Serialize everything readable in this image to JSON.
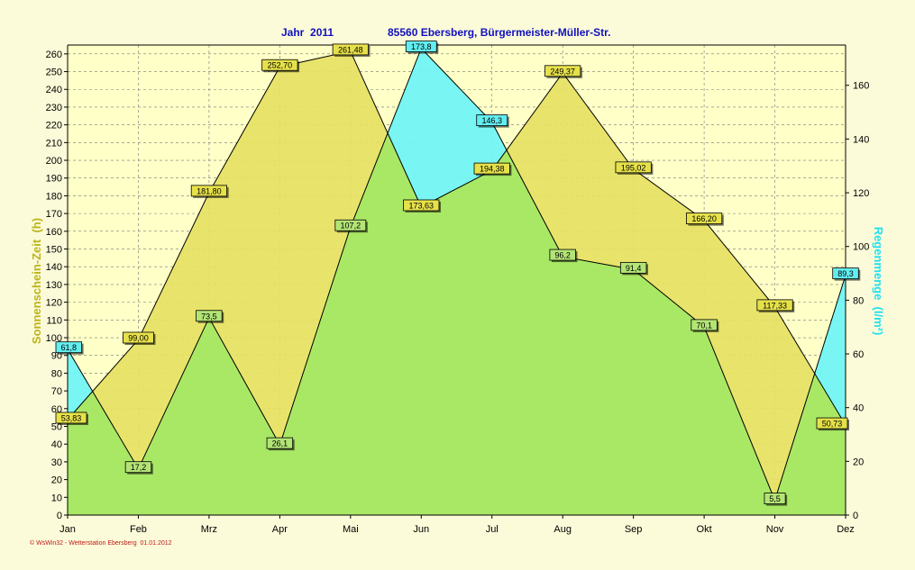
{
  "header": {
    "year_label": "Jahr  2011",
    "station_label": "85560 Ebersberg, Bürgermeister-Müller-Str."
  },
  "footer": {
    "credit": "© WsWin32 - Wetterstation Ebersberg  01.01.2012"
  },
  "colors": {
    "background": "#fcfbd9",
    "plot_background": "#ffffc8",
    "sunshine_fill": "#e6e163",
    "rain_fill": "#72f5f5",
    "overlap_fill": "#a9e865",
    "title_color": "#1010c0",
    "left_axis_color": "#bcb41a",
    "right_axis_color": "#20e0f0",
    "sunshine_label_bg": "#e6e14a",
    "rain_label_bg": "#62eef0",
    "hidden_label_bg": "#b3e476"
  },
  "chart_data": {
    "type": "area",
    "title": "Jahr  2011          85560 Ebersberg, Bürgermeister-Müller-Str.",
    "categories": [
      "Jan",
      "Feb",
      "Mrz",
      "Apr",
      "Mai",
      "Jun",
      "Jul",
      "Aug",
      "Sep",
      "Okt",
      "Nov",
      "Dez"
    ],
    "ylabel": "Sonnenschein-Zeit  (h)",
    "y2label": "Regenmenge  (l/m²)",
    "ylim": [
      0,
      265
    ],
    "y_ticks": [
      0,
      10,
      20,
      30,
      40,
      50,
      60,
      70,
      80,
      90,
      100,
      110,
      120,
      130,
      140,
      150,
      160,
      170,
      180,
      190,
      200,
      210,
      220,
      230,
      240,
      250,
      260
    ],
    "y2lim": [
      0,
      175
    ],
    "y2_ticks": [
      0,
      20,
      40,
      60,
      80,
      100,
      120,
      140,
      160
    ],
    "grid": true,
    "series": [
      {
        "name": "Sonnenschein-Zeit  (h)",
        "axis": "left",
        "values": [
          53.83,
          99.0,
          181.8,
          252.7,
          261.48,
          173.63,
          194.38,
          249.37,
          195.02,
          166.2,
          117.33,
          50.73
        ],
        "labels": [
          "53,83",
          "99,00",
          "181,80",
          "252,70",
          "261,48",
          "173,63",
          "194,38",
          "249,37",
          "195,02",
          "166,20",
          "117,33",
          "50,73"
        ]
      },
      {
        "name": "Regenmenge  (l/m²)",
        "axis": "right",
        "values": [
          61.8,
          17.2,
          73.5,
          26.1,
          107.2,
          173.8,
          146.3,
          96.2,
          91.4,
          70.1,
          5.5,
          89.3
        ],
        "labels": [
          "61,8",
          "17,2",
          "73,5",
          "26,1",
          "107,2",
          "173,8",
          "146,3",
          "96,2",
          "91,4",
          "70,1",
          "5,5",
          "89,3"
        ]
      }
    ]
  }
}
